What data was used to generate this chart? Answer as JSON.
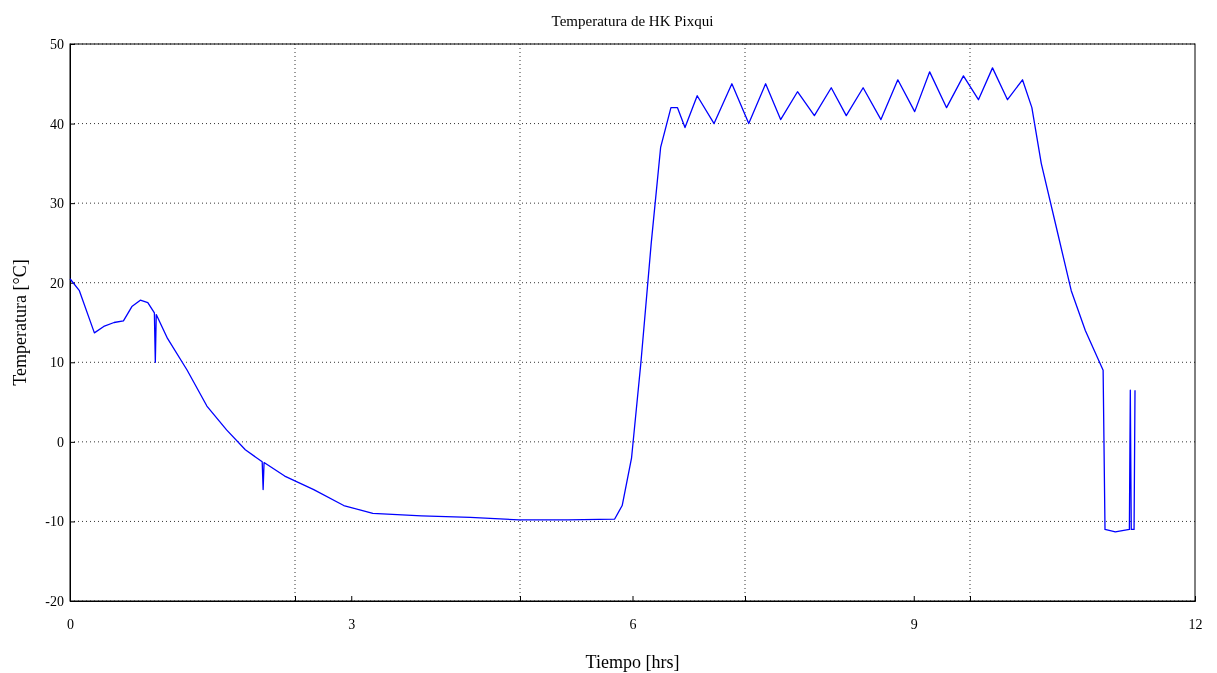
{
  "chart_data": {
    "type": "line",
    "title": "Temperatura de HK Pixqui",
    "xlabel": "Tiempo [hrs]",
    "ylabel": "Temperatura [°C]",
    "xlim": [
      0,
      12
    ],
    "ylim": [
      -20,
      50
    ],
    "xticks": [
      0,
      {
        "value": 2.4,
        "label": null
      },
      3,
      {
        "value": 4.8,
        "label": null
      },
      6,
      {
        "value": 7.2,
        "label": null
      },
      9,
      {
        "value": 9.6,
        "label": null
      },
      12
    ],
    "yticks": [
      -20,
      -10,
      0,
      10,
      20,
      30,
      40,
      50
    ],
    "grid": true,
    "line_style": "solid",
    "marker": "none",
    "series": [
      {
        "color": "#0000ff",
        "x": [
          0,
          0.1,
          0.26,
          0.36,
          0.47,
          0.57,
          0.66,
          0.75,
          0.83,
          0.9,
          0.91,
          0.92,
          1.04,
          1.25,
          1.46,
          1.67,
          1.87,
          2.05,
          2.06,
          2.07,
          2.29,
          2.6,
          2.92,
          3.23,
          3.75,
          4.27,
          4.79,
          5.31,
          5.81,
          5.89,
          5.99,
          6.09,
          6.2,
          6.3,
          6.41,
          6.48,
          6.56,
          6.69,
          6.87,
          7.06,
          7.24,
          7.42,
          7.58,
          7.76,
          7.94,
          8.12,
          8.28,
          8.46,
          8.65,
          8.83,
          9.01,
          9.17,
          9.35,
          9.53,
          9.69,
          9.84,
          10.0,
          10.16,
          10.26,
          10.36,
          10.52,
          10.68,
          10.83,
          11.02,
          11.04,
          11.15,
          11.3,
          11.31,
          11.32,
          11.33,
          11.35,
          11.36
        ],
        "values": [
          20.5,
          19,
          13.7,
          14.5,
          15,
          15.2,
          17,
          17.8,
          17.5,
          16.2,
          10,
          16,
          13,
          9,
          4.5,
          1.5,
          -1,
          -2.5,
          -6,
          -2.6,
          -4.3,
          -6,
          -8,
          -9,
          -9.3,
          -9.5,
          -9.8,
          -9.8,
          -9.7,
          -8,
          -2,
          10,
          25,
          37,
          42,
          42,
          39.5,
          43.5,
          40,
          45,
          40,
          45,
          40.5,
          44,
          41,
          44.5,
          41,
          44.5,
          40.5,
          45.5,
          41.5,
          46.5,
          42,
          46,
          43,
          47,
          43,
          45.5,
          42,
          35,
          27,
          19,
          14,
          9,
          -11,
          -11.3,
          -11,
          6.5,
          -11,
          -11,
          -11,
          6.5
        ]
      }
    ]
  }
}
